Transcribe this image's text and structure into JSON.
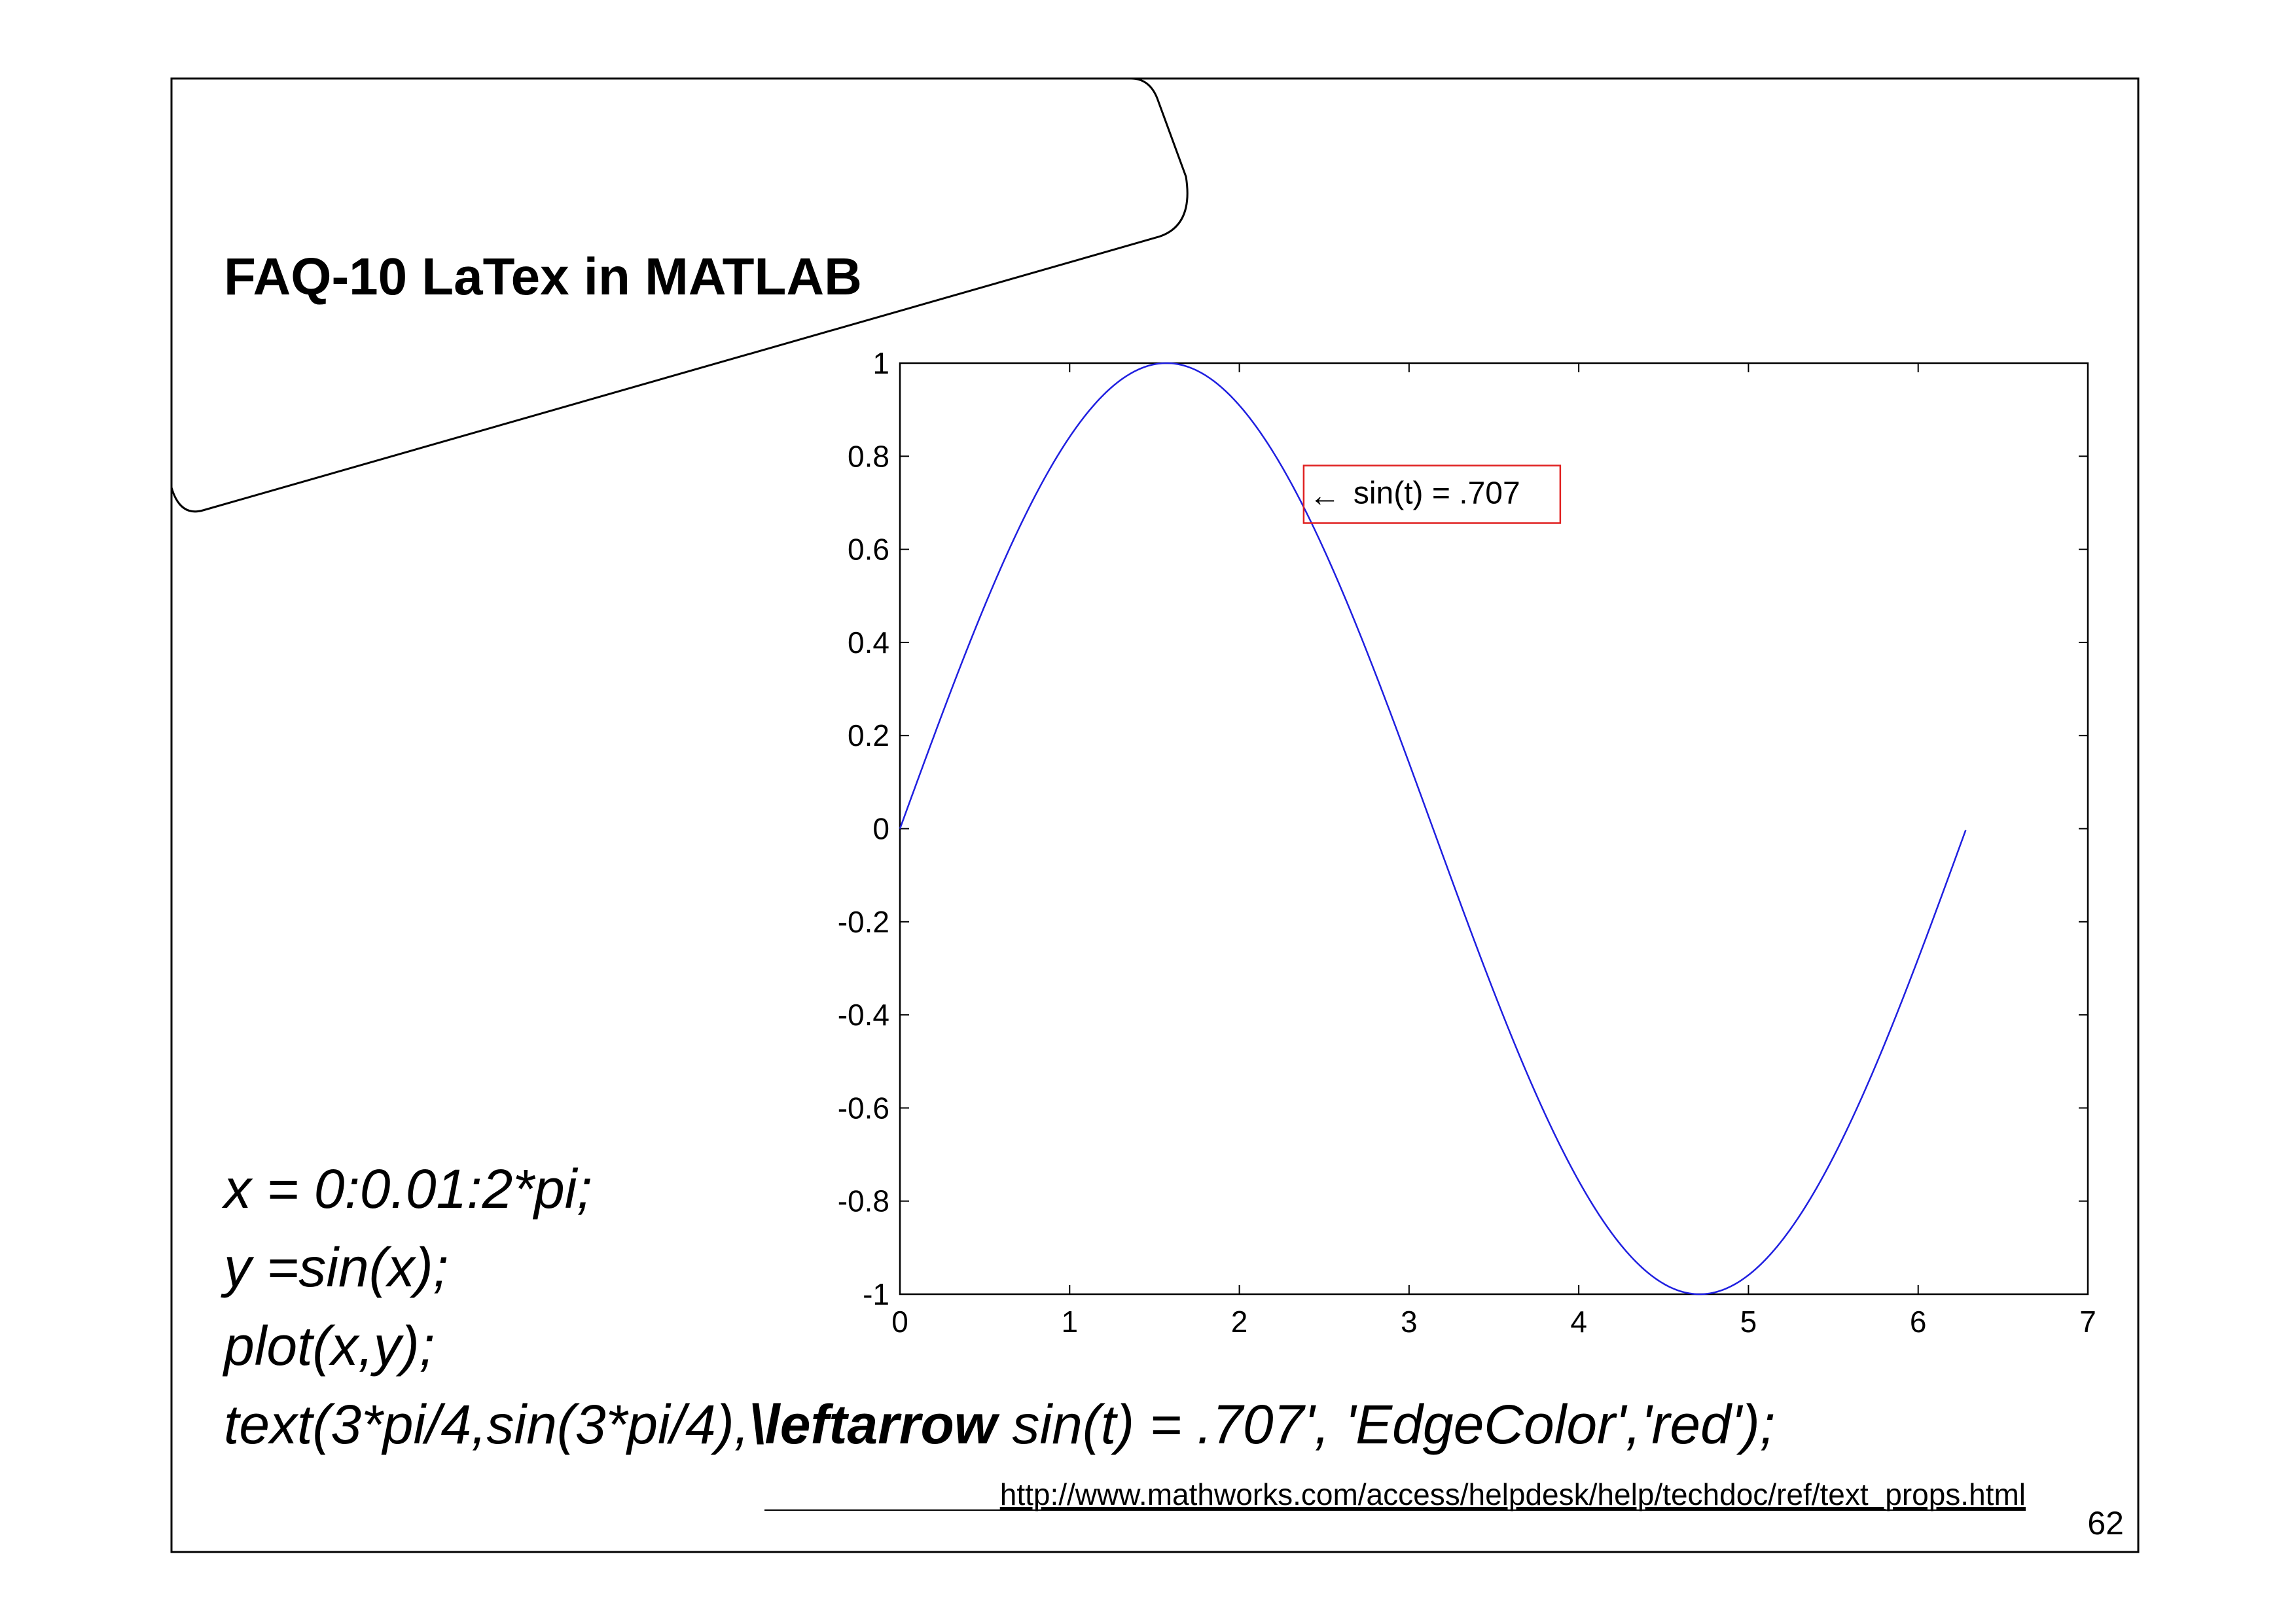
{
  "slide": {
    "title": "FAQ-10 LaTex in MATLAB",
    "code_lines": [
      "x = 0:0.01:2*pi;",
      "y =sin(x);",
      "plot(x,y);"
    ],
    "code_last_line": {
      "prefix": "text(3*pi/4,sin(3*pi/4),",
      "bold": "\\leftarrow",
      "suffix": " sin(t) = .707', 'EdgeColor','red');"
    },
    "link": "http://www.mathworks.com/access/helpdesk/help/techdoc/ref/text_props.html",
    "page_number": "62"
  },
  "chart_data": {
    "type": "line",
    "function": "sin(x)",
    "x_range": [
      0,
      6.28
    ],
    "x_step": 0.01,
    "xlim": [
      0,
      7
    ],
    "ylim": [
      -1,
      1
    ],
    "xticks": [
      0,
      1,
      2,
      3,
      4,
      5,
      6,
      7
    ],
    "yticks": [
      1,
      0.8,
      0.6,
      0.4,
      0.2,
      0,
      -0.2,
      -0.4,
      -0.6,
      -0.8,
      -1
    ],
    "xtick_labels": [
      "0",
      "1",
      "2",
      "3",
      "4",
      "5",
      "6",
      "7"
    ],
    "ytick_labels": [
      "1",
      "0.8",
      "0.6",
      "0.4",
      "0.2",
      "0",
      "-0.2",
      "-0.4",
      "-0.6",
      "-0.8",
      "-1"
    ],
    "line_color": "#1f1fe0",
    "grid": false,
    "annotation": {
      "x": 2.356,
      "y": 0.707,
      "arrow": "←",
      "text": "sin(t) = .707",
      "edge_color": "#e02020"
    }
  }
}
